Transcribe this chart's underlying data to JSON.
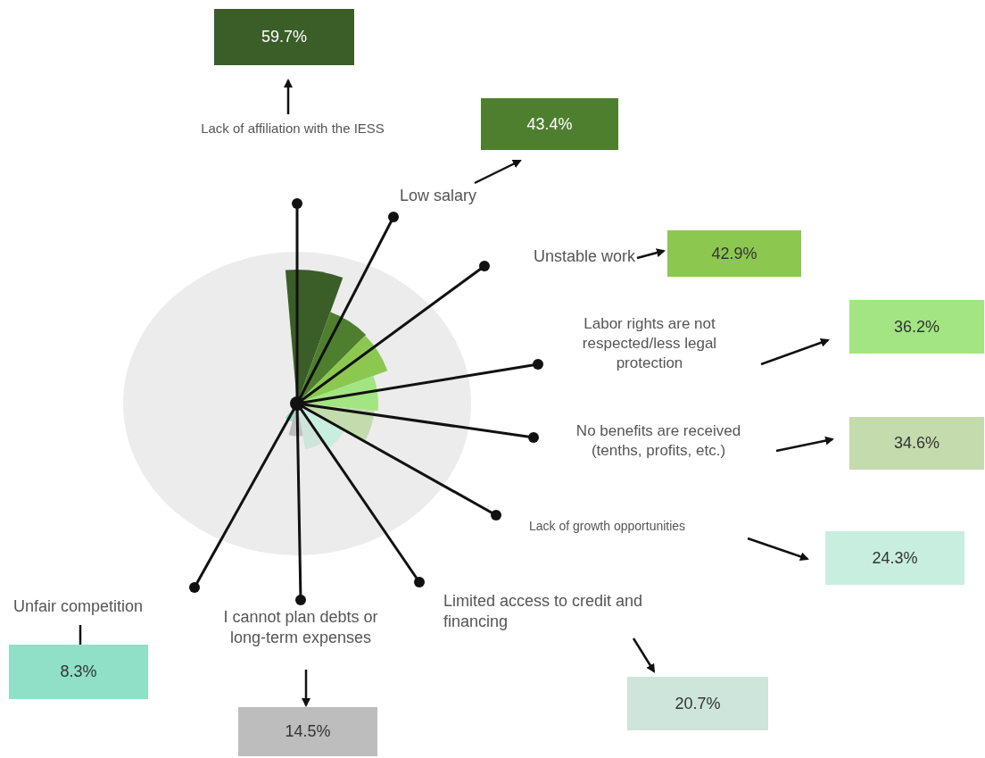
{
  "chart_data": {
    "type": "other",
    "categories": [
      "Lack of affiliation with the IESS",
      "Low salary",
      "Unstable work",
      "Labor rights are not respected/less legal protection",
      "No benefits are received (tenths, profits, etc.)",
      "Lack of growth opportunities",
      "Limited access to credit and financing",
      "I cannot plan debts or long-term expenses",
      "Unfair competition"
    ],
    "values": [
      59.7,
      43.4,
      42.9,
      36.2,
      34.6,
      24.3,
      20.7,
      14.5,
      8.3
    ],
    "value_labels": [
      "59.7%",
      "43.4%",
      "42.9%",
      "36.2%",
      "34.6%",
      "24.3%",
      "20.7%",
      "14.5%",
      "8.3%"
    ],
    "colors": [
      "#3b5e29",
      "#4e7f2f",
      "#8cc850",
      "#a2e582",
      "#c3dbad",
      "#c8eee0",
      "#cde5da",
      "#bdbdbd",
      "#8fe0c6"
    ]
  }
}
